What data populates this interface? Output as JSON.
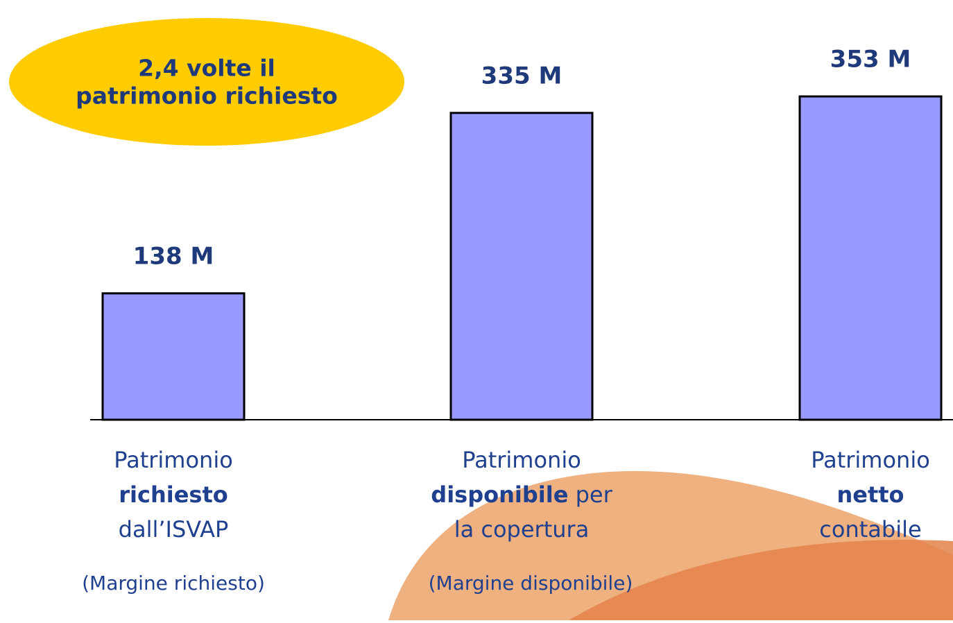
{
  "chart_data": {
    "type": "bar",
    "callout": [
      "2,4 volte il",
      "patrimonio richiesto"
    ],
    "categories": [
      [
        [
          {
            "text": "Patrimonio",
            "bold": false
          }
        ],
        [
          {
            "text": "richiesto",
            "bold": true
          }
        ],
        [
          {
            "text": "dall’ISVAP",
            "bold": false
          }
        ]
      ],
      [
        [
          {
            "text": "Patrimonio",
            "bold": false
          }
        ],
        [
          {
            "text": "disponibile",
            "bold": true
          },
          {
            "text": " per",
            "bold": false
          }
        ],
        [
          {
            "text": "la copertura",
            "bold": false
          }
        ]
      ],
      [
        [
          {
            "text": "Patrimonio",
            "bold": false
          }
        ],
        [
          {
            "text": "netto",
            "bold": true
          }
        ],
        [
          {
            "text": "contabile",
            "bold": false
          }
        ]
      ]
    ],
    "values": [
      138,
      335,
      353
    ],
    "value_labels": [
      "138 M",
      "335 M",
      "353 M"
    ],
    "sublabels": [
      "(Margine richiesto)",
      "(Margine disponibile)",
      null
    ],
    "color": "#9999ff"
  }
}
